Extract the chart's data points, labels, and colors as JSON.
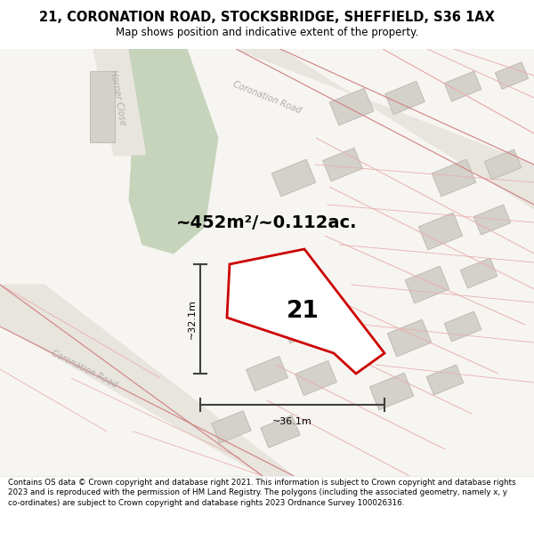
{
  "title": "21, CORONATION ROAD, STOCKSBRIDGE, SHEFFIELD, S36 1AX",
  "subtitle": "Map shows position and indicative extent of the property.",
  "footer": "Contains OS data © Crown copyright and database right 2021. This information is subject to Crown copyright and database rights 2023 and is reproduced with the permission of HM Land Registry. The polygons (including the associated geometry, namely x, y co-ordinates) are subject to Crown copyright and database rights 2023 Ordnance Survey 100026316.",
  "area_label": "~452m²/~0.112ac.",
  "label_21": "21",
  "dim_height": "~32.1m",
  "dim_width": "~36.1m",
  "map_bg": "#f7f5f2",
  "road_fill": "#e8e4de",
  "green_fill": "#c5d4bb",
  "plot_outline": "#cc0000",
  "building_fill": "#d4d0ca",
  "building_edge": "#c0bcb5",
  "road_label_color": "#b0aca8",
  "dim_line_color": "#404040",
  "pink_line": "#e8b0b0",
  "dark_pink_line": "#d08080"
}
